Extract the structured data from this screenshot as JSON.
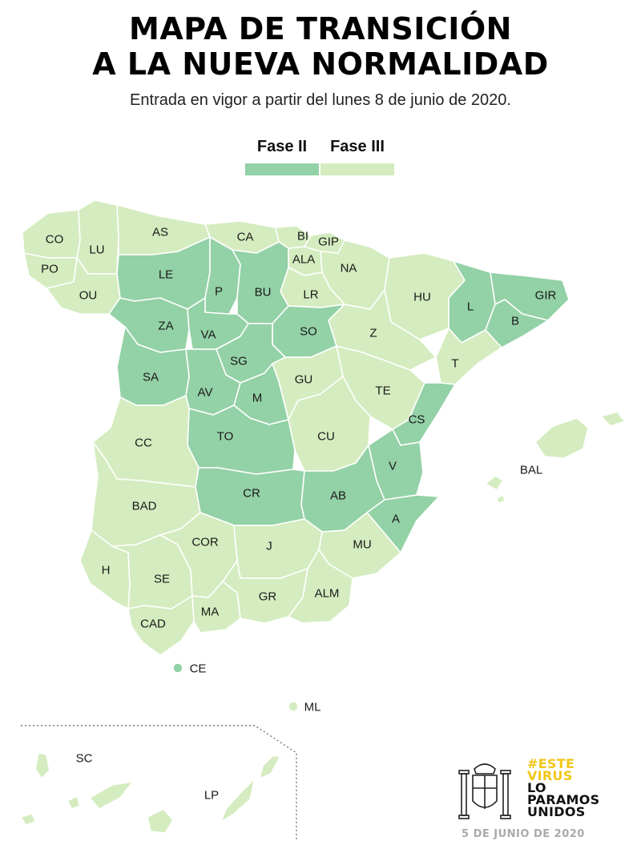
{
  "header": {
    "title_line1": "MAPA DE TRANSICIÓN",
    "title_line2": "A LA NUEVA NORMALIDAD",
    "subtitle": "Entrada en vigor a partir del lunes 8 de junio de 2020."
  },
  "legend": {
    "items": [
      {
        "label": "Fase II",
        "color": "#93d1a6"
      },
      {
        "label": "Fase III",
        "color": "#d4ecbf"
      }
    ]
  },
  "map": {
    "phase_colors": {
      "II": "#93d1a6",
      "III": "#d4ecbf"
    },
    "provinces": {
      "CO": {
        "label": "CO",
        "phase": "III"
      },
      "LU": {
        "label": "LU",
        "phase": "III"
      },
      "PO": {
        "label": "PO",
        "phase": "III"
      },
      "OU": {
        "label": "OU",
        "phase": "III"
      },
      "AS": {
        "label": "AS",
        "phase": "III"
      },
      "CA": {
        "label": "CA",
        "phase": "III"
      },
      "BI": {
        "label": "BI",
        "phase": "III"
      },
      "GIP": {
        "label": "GIP",
        "phase": "III"
      },
      "ALA": {
        "label": "ALA",
        "phase": "III"
      },
      "NA": {
        "label": "NA",
        "phase": "III"
      },
      "LR": {
        "label": "LR",
        "phase": "III"
      },
      "HU": {
        "label": "HU",
        "phase": "III"
      },
      "Z": {
        "label": "Z",
        "phase": "III"
      },
      "TE": {
        "label": "TE",
        "phase": "III"
      },
      "T": {
        "label": "T",
        "phase": "III"
      },
      "GU": {
        "label": "GU",
        "phase": "III"
      },
      "CU": {
        "label": "CU",
        "phase": "III"
      },
      "CC": {
        "label": "CC",
        "phase": "III"
      },
      "BAD": {
        "label": "BAD",
        "phase": "III"
      },
      "H": {
        "label": "H",
        "phase": "III"
      },
      "SE": {
        "label": "SE",
        "phase": "III"
      },
      "CAD": {
        "label": "CAD",
        "phase": "III"
      },
      "COR": {
        "label": "COR",
        "phase": "III"
      },
      "MA": {
        "label": "MA",
        "phase": "III"
      },
      "J": {
        "label": "J",
        "phase": "III"
      },
      "GR": {
        "label": "GR",
        "phase": "III"
      },
      "ALM": {
        "label": "ALM",
        "phase": "III"
      },
      "MU": {
        "label": "MU",
        "phase": "III"
      },
      "BAL": {
        "label": "BAL",
        "phase": "III"
      },
      "ML": {
        "label": "ML",
        "phase": "III"
      },
      "SC": {
        "label": "SC",
        "phase": "III"
      },
      "LP": {
        "label": "LP",
        "phase": "III"
      },
      "LE": {
        "label": "LE",
        "phase": "II"
      },
      "P": {
        "label": "P",
        "phase": "II"
      },
      "BU": {
        "label": "BU",
        "phase": "II"
      },
      "ZA": {
        "label": "ZA",
        "phase": "II"
      },
      "VA": {
        "label": "VA",
        "phase": "II"
      },
      "SO": {
        "label": "SO",
        "phase": "II"
      },
      "SG": {
        "label": "SG",
        "phase": "II"
      },
      "SA": {
        "label": "SA",
        "phase": "II"
      },
      "AV": {
        "label": "AV",
        "phase": "II"
      },
      "M": {
        "label": "M",
        "phase": "II"
      },
      "TO": {
        "label": "TO",
        "phase": "II"
      },
      "CR": {
        "label": "CR",
        "phase": "II"
      },
      "AB": {
        "label": "AB",
        "phase": "II"
      },
      "V": {
        "label": "V",
        "phase": "II"
      },
      "CS": {
        "label": "CS",
        "phase": "II"
      },
      "A": {
        "label": "A",
        "phase": "II"
      },
      "L": {
        "label": "L",
        "phase": "II"
      },
      "B": {
        "label": "B",
        "phase": "II"
      },
      "GIR": {
        "label": "GIR",
        "phase": "II"
      },
      "CE": {
        "label": "CE",
        "phase": "II"
      }
    }
  },
  "campaign": {
    "line1": "#ESTE",
    "line2": "VIRUS",
    "line3": "LO",
    "line4": "PARAMOS",
    "line5": "UNIDOS",
    "accent_color": "#f2c618"
  },
  "footer": {
    "date": "5 DE JUNIO DE 2020"
  }
}
